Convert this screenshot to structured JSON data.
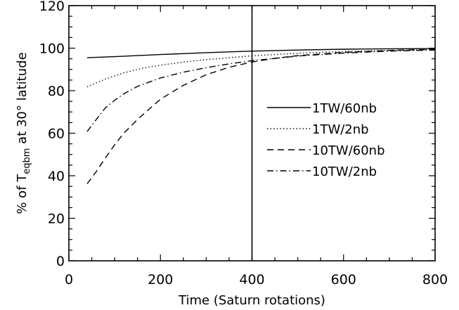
{
  "chart_data": {
    "type": "line",
    "xlabel": "Time (Saturn rotations)",
    "ylabel_main": "% of T",
    "ylabel_sub": "eqbm",
    "ylabel_rest": " at 30° latitude",
    "xlim": [
      0,
      800
    ],
    "ylim": [
      0,
      120
    ],
    "x_ticks": [
      0,
      200,
      400,
      600,
      800
    ],
    "y_ticks": [
      0,
      20,
      40,
      60,
      80,
      100,
      120
    ],
    "x_tick_labels": [
      "0",
      "200",
      "400",
      "600",
      "800"
    ],
    "y_tick_labels": [
      "0",
      "20",
      "40",
      "60",
      "80",
      "100",
      "120"
    ],
    "vertical_marker_x": 400,
    "grid": false,
    "legend_position": "right",
    "series": [
      {
        "name": "1TW/60nb",
        "dash": "solid",
        "x": [
          40,
          100,
          200,
          300,
          400,
          500,
          600,
          700,
          800
        ],
        "y": [
          95.5,
          96.0,
          97.0,
          97.9,
          98.6,
          99.1,
          99.5,
          99.7,
          99.8
        ]
      },
      {
        "name": "1TW/2nb",
        "dash": "dotted",
        "x": [
          40,
          80,
          120,
          160,
          200,
          250,
          300,
          400,
          500,
          600,
          700,
          800
        ],
        "y": [
          81.8,
          85.5,
          88.4,
          90.5,
          92.0,
          93.5,
          94.6,
          96.4,
          97.6,
          98.4,
          98.9,
          99.3
        ]
      },
      {
        "name": "10TW/60nb",
        "dash": "dashed",
        "x": [
          40,
          60,
          80,
          100,
          120,
          150,
          200,
          250,
          300,
          350,
          400,
          450,
          500,
          600,
          700,
          800
        ],
        "y": [
          36.2,
          42.0,
          48.5,
          54.5,
          60.0,
          66.5,
          76.0,
          82.5,
          87.5,
          91.0,
          93.5,
          95.2,
          96.5,
          98.0,
          98.9,
          99.5
        ]
      },
      {
        "name": "10TW/2nb",
        "dash": "dashdot",
        "x": [
          40,
          60,
          80,
          100,
          120,
          150,
          200,
          250,
          300,
          350,
          400,
          500,
          600,
          700,
          800
        ],
        "y": [
          60.8,
          66.5,
          72.0,
          75.5,
          78.5,
          82.0,
          86.0,
          88.7,
          90.8,
          92.6,
          94.1,
          96.3,
          97.7,
          98.6,
          99.1
        ]
      }
    ]
  }
}
